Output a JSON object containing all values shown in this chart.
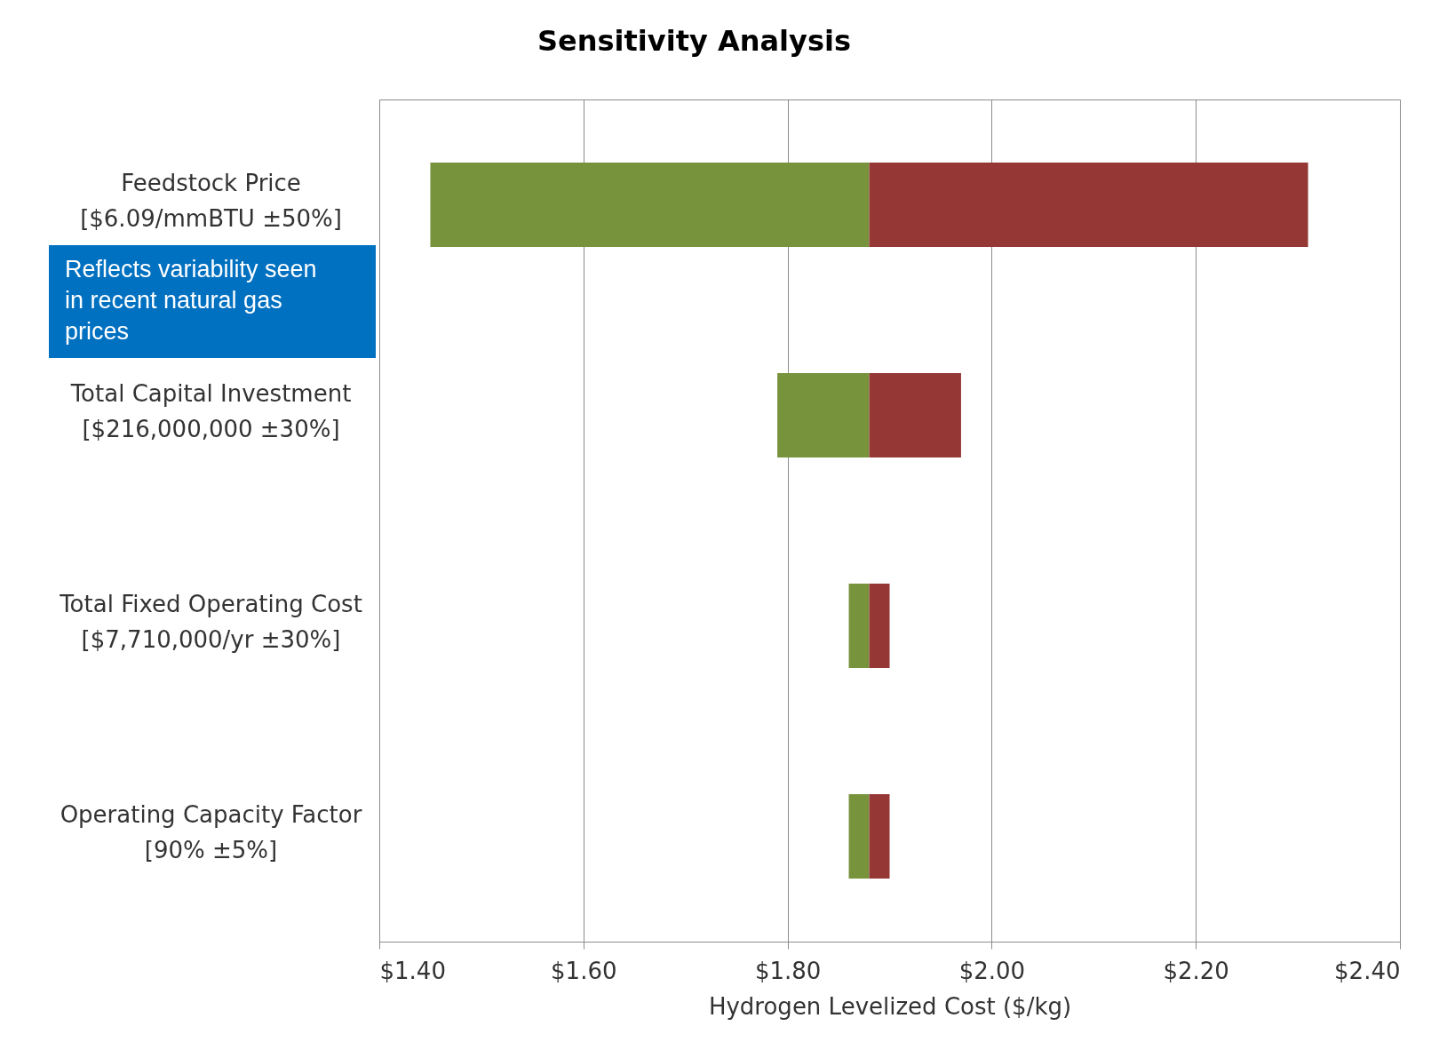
{
  "chart_data": {
    "type": "bar",
    "orientation": "horizontal",
    "title": "Sensitivity Analysis",
    "xlabel": "Hydrogen Levelized Cost ($/kg)",
    "categories": [
      "Feedstock Price\n[$6.09/mmBTU ±50%]",
      "Total Capital Investment\n[$216,000,000 ±30%]",
      "Total Fixed Operating Cost\n[$7,710,000/yr ±30%]",
      "Operating Capacity Factor\n[90% ±5%]"
    ],
    "series": [
      {
        "color": "#77933c",
        "base": [
          1.45,
          1.79,
          1.86,
          1.86
        ],
        "values": [
          0.43,
          0.09,
          0.02,
          0.02
        ]
      },
      {
        "color": "#953735",
        "base": [
          1.88,
          1.88,
          1.88,
          1.88
        ],
        "values": [
          0.43,
          0.09,
          0.02,
          0.02
        ]
      }
    ],
    "xlim": [
      1.4,
      2.4
    ],
    "xticks": [
      {
        "value": 1.4,
        "label": "$1.40"
      },
      {
        "value": 1.6,
        "label": "$1.60"
      },
      {
        "value": 1.8,
        "label": "$1.80"
      },
      {
        "value": 2.0,
        "label": "$2.00"
      },
      {
        "value": 2.2,
        "label": "$2.20"
      },
      {
        "value": 2.4,
        "label": "$2.40"
      }
    ],
    "grid": "x",
    "annotations": [
      "Reflects variability seen in recent natural gas prices"
    ]
  }
}
